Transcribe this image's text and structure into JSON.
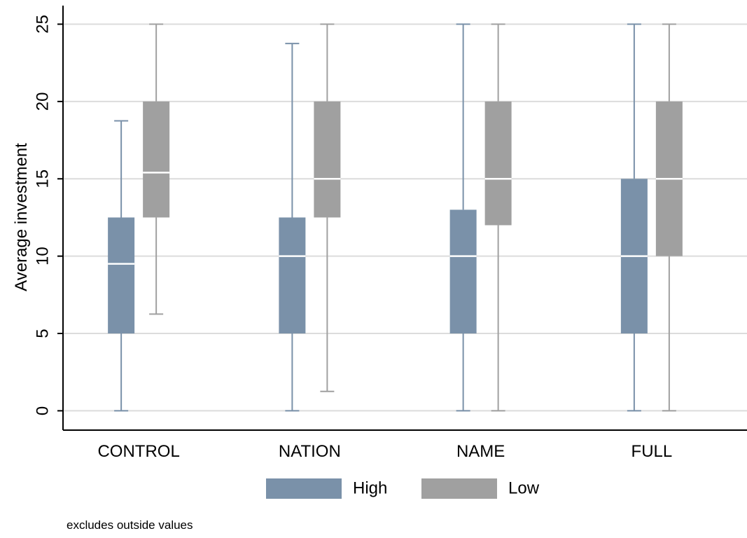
{
  "chart_data": {
    "type": "box",
    "ylabel": "Average investment",
    "note": "excludes outside values",
    "categories": [
      "CONTROL",
      "NATION",
      "NAME",
      "FULL"
    ],
    "series": [
      {
        "name": "High",
        "color": "#7a91a9",
        "min": [
          0,
          0,
          0,
          0
        ],
        "q1": [
          5,
          5,
          5,
          5
        ],
        "median": [
          9.5,
          10,
          10,
          10
        ],
        "q3": [
          12.5,
          12.5,
          13,
          15
        ],
        "max": [
          18.75,
          23.75,
          25,
          25
        ]
      },
      {
        "name": "Low",
        "color": "#a0a0a0",
        "min": [
          6.25,
          1.25,
          0,
          0
        ],
        "q1": [
          12.5,
          12.5,
          12,
          10
        ],
        "median": [
          15.4,
          15,
          15,
          15
        ],
        "q3": [
          20,
          20,
          20,
          20
        ],
        "max": [
          25,
          25,
          25,
          25
        ]
      }
    ],
    "ylim": [
      -1.25,
      26.2
    ],
    "yticks": [
      0,
      5,
      10,
      15,
      20,
      25
    ],
    "grid": true
  }
}
